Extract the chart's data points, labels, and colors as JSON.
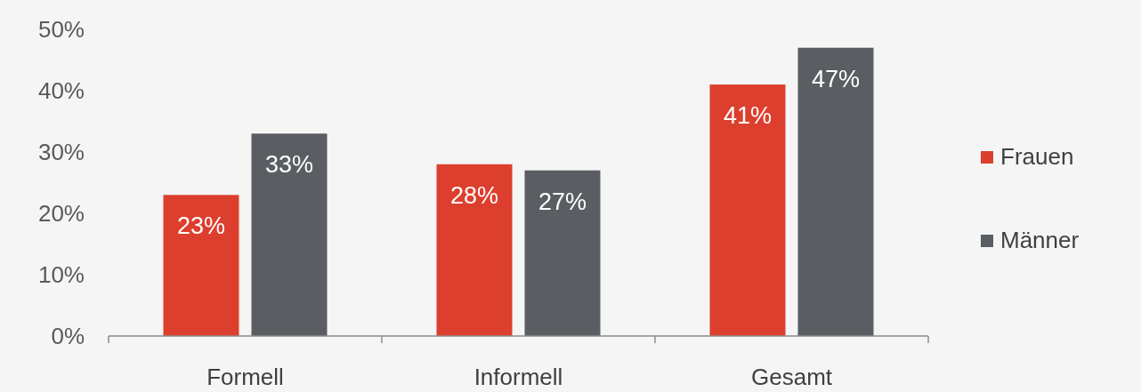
{
  "chart_data": {
    "type": "bar",
    "categories": [
      "Formell",
      "Informell",
      "Gesamt"
    ],
    "series": [
      {
        "name": "Frauen",
        "color": "#dc3f2e",
        "values": [
          23,
          28,
          41
        ],
        "value_labels": [
          "23%",
          "28%",
          "41%"
        ]
      },
      {
        "name": "Männer",
        "color": "#5a5e63",
        "values": [
          33,
          27,
          47
        ],
        "value_labels": [
          "33%",
          "27%",
          "47%"
        ]
      }
    ],
    "ylim": [
      0,
      50
    ],
    "yticks": [
      {
        "value": 0,
        "label": "0%"
      },
      {
        "value": 10,
        "label": "10%"
      },
      {
        "value": 20,
        "label": "20%"
      },
      {
        "value": 30,
        "label": "30%"
      },
      {
        "value": 40,
        "label": "40%"
      },
      {
        "value": 50,
        "label": "50%"
      }
    ],
    "grid": false,
    "legend": "right"
  }
}
